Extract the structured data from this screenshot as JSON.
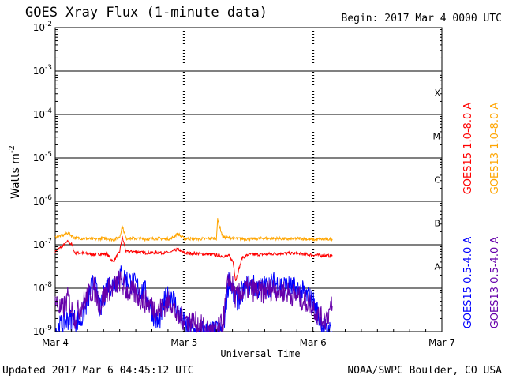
{
  "header": {
    "title": "GOES Xray Flux (1-minute data)",
    "begin": "Begin:  2017 Mar 4 0000 UTC"
  },
  "footer": {
    "updated": "Updated 2017 Mar  6 04:45:12 UTC",
    "credit": "NOAA/SWPC Boulder, CO USA"
  },
  "chart_data": {
    "type": "line",
    "ylabel": "Watts m",
    "ylabel_sup": "-2",
    "xlabel": "Universal Time",
    "yscale": "log",
    "ylim": [
      1e-09,
      0.01
    ],
    "xlim": [
      0,
      3
    ],
    "y_ticks": [
      {
        "exp": -9,
        "label": "10",
        "sup": "-9"
      },
      {
        "exp": -8,
        "label": "10",
        "sup": "-8"
      },
      {
        "exp": -7,
        "label": "10",
        "sup": "-7"
      },
      {
        "exp": -6,
        "label": "10",
        "sup": "-6"
      },
      {
        "exp": -5,
        "label": "10",
        "sup": "-5"
      },
      {
        "exp": -4,
        "label": "10",
        "sup": "-4"
      },
      {
        "exp": -3,
        "label": "10",
        "sup": "-3"
      },
      {
        "exp": -2,
        "label": "10",
        "sup": "-2"
      }
    ],
    "x_ticks": [
      {
        "day": 0,
        "label": "Mar 4"
      },
      {
        "day": 1,
        "label": "Mar 5"
      },
      {
        "day": 2,
        "label": "Mar 6"
      },
      {
        "day": 3,
        "label": "Mar 7"
      }
    ],
    "flare_classes": [
      {
        "label": "A",
        "exp": -8
      },
      {
        "label": "B",
        "exp": -7
      },
      {
        "label": "C",
        "exp": -6
      },
      {
        "label": "M",
        "exp": -5
      },
      {
        "label": "X",
        "exp": -4
      }
    ],
    "grid": true,
    "series": [
      {
        "name": "GOES15 1.0-8.0 A",
        "color": "#ff0000",
        "x": [
          0,
          0.05,
          0.1,
          0.13,
          0.15,
          0.2,
          0.3,
          0.4,
          0.45,
          0.5,
          0.52,
          0.55,
          0.6,
          0.7,
          0.8,
          0.85,
          0.9,
          0.95,
          1.0,
          1.2,
          1.3,
          1.35,
          1.38,
          1.4,
          1.45,
          1.5,
          1.6,
          1.7,
          1.8,
          1.9,
          2.0,
          2.1,
          2.15
        ],
        "y": [
          7e-08,
          9e-08,
          1.2e-07,
          1e-07,
          6.5e-08,
          6.5e-08,
          6e-08,
          6.2e-08,
          4e-08,
          7e-08,
          1.5e-07,
          7e-08,
          7e-08,
          6.5e-08,
          6.6e-08,
          6.5e-08,
          6.7e-08,
          8e-08,
          6.5e-08,
          6e-08,
          5.5e-08,
          5.5e-08,
          4e-08,
          1.5e-08,
          5e-08,
          6e-08,
          6e-08,
          6.2e-08,
          6.4e-08,
          6.2e-08,
          5.8e-08,
          5.6e-08,
          5.5e-08
        ]
      },
      {
        "name": "GOES13 1.0-8.0 A",
        "color": "#ffa500",
        "x": [
          0,
          0.05,
          0.1,
          0.13,
          0.15,
          0.2,
          0.3,
          0.4,
          0.45,
          0.5,
          0.52,
          0.55,
          0.6,
          0.7,
          0.8,
          0.85,
          0.9,
          0.95,
          1.0,
          1.1,
          1.2,
          1.25,
          1.26,
          1.3,
          1.4,
          1.5,
          1.6,
          1.7,
          1.8,
          1.9,
          2.0,
          2.1,
          2.15
        ],
        "y": [
          1.5e-07,
          1.6e-07,
          1.9e-07,
          1.6e-07,
          1.45e-07,
          1.4e-07,
          1.35e-07,
          1.4e-07,
          1.3e-07,
          1.5e-07,
          2.7e-07,
          1.4e-07,
          1.4e-07,
          1.35e-07,
          1.4e-07,
          1.35e-07,
          1.4e-07,
          1.8e-07,
          1.4e-07,
          1.35e-07,
          1.4e-07,
          1.4e-07,
          3.8e-07,
          1.5e-07,
          1.4e-07,
          1.35e-07,
          1.4e-07,
          1.4e-07,
          1.35e-07,
          1.4e-07,
          1.3e-07,
          1.35e-07,
          1.35e-07
        ]
      },
      {
        "name": "GOES15 0.5-4.0 A",
        "color": "#0000ff",
        "x": [
          0,
          0.1,
          0.2,
          0.3,
          0.35,
          0.4,
          0.45,
          0.5,
          0.55,
          0.6,
          0.7,
          0.75,
          0.8,
          0.85,
          0.9,
          0.95,
          1.0,
          1.05,
          1.1,
          1.2,
          1.25,
          1.3,
          1.35,
          1.4,
          1.5,
          1.6,
          1.7,
          1.8,
          1.9,
          2.0,
          2.05,
          2.1,
          2.15
        ],
        "y": [
          1e-09,
          2e-09,
          1.8e-09,
          1.5e-08,
          3e-09,
          1.2e-08,
          1.2e-08,
          2e-08,
          1.6e-08,
          1.3e-08,
          8e-09,
          3e-09,
          1.5e-09,
          5e-09,
          8e-09,
          3e-09,
          1.5e-09,
          1e-09,
          1e-09,
          1e-09,
          1e-09,
          1e-09,
          1.8e-08,
          5e-09,
          1.2e-08,
          1e-08,
          1.3e-08,
          1.1e-08,
          9e-09,
          5e-09,
          2e-09,
          1e-09,
          1e-09
        ]
      },
      {
        "name": "GOES13 0.5-4.0 A",
        "color": "#6600aa",
        "x": [
          0,
          0.05,
          0.1,
          0.15,
          0.2,
          0.3,
          0.35,
          0.4,
          0.45,
          0.5,
          0.55,
          0.6,
          0.7,
          0.8,
          0.85,
          0.9,
          0.95,
          1.0,
          1.1,
          1.2,
          1.25,
          1.3,
          1.35,
          1.4,
          1.5,
          1.6,
          1.7,
          1.8,
          1.9,
          2.0,
          2.05,
          2.1,
          2.15
        ],
        "y": [
          5e-09,
          3e-09,
          6e-09,
          2e-09,
          4e-09,
          1e-08,
          4e-09,
          9e-09,
          1e-08,
          1.5e-08,
          9e-09,
          8e-09,
          5e-09,
          3e-09,
          4e-09,
          5e-09,
          2e-09,
          2e-09,
          1.5e-09,
          1e-09,
          1e-09,
          1.5e-09,
          2e-08,
          6e-09,
          1e-08,
          8e-09,
          1e-08,
          8e-09,
          6e-09,
          4e-09,
          2e-09,
          2e-09,
          4e-09
        ]
      }
    ]
  }
}
